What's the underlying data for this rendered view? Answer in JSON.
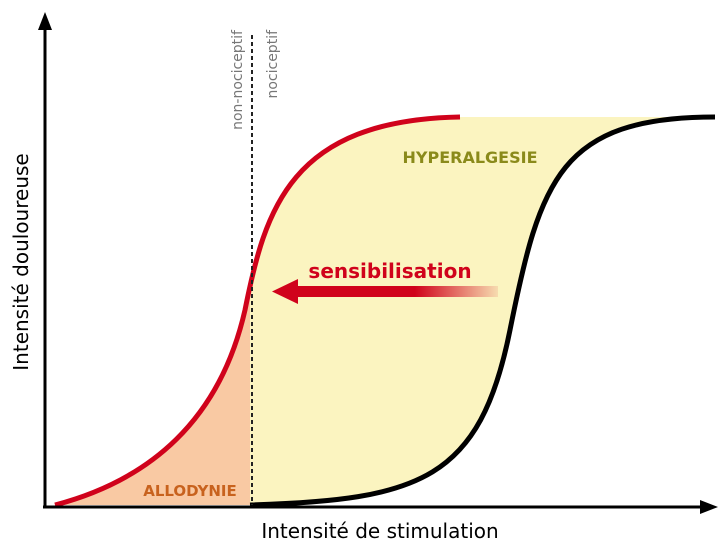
{
  "axes": {
    "x_label": "Intensité de stimulation",
    "y_label": "Intensité douloureuse"
  },
  "regions": {
    "left": "non-nociceptif",
    "right": "nociceptif"
  },
  "labels": {
    "hyperalgesia": "HYPERALGESIE",
    "sensitization": "sensibilisation",
    "allodynia": "ALLODYNIE"
  }
}
